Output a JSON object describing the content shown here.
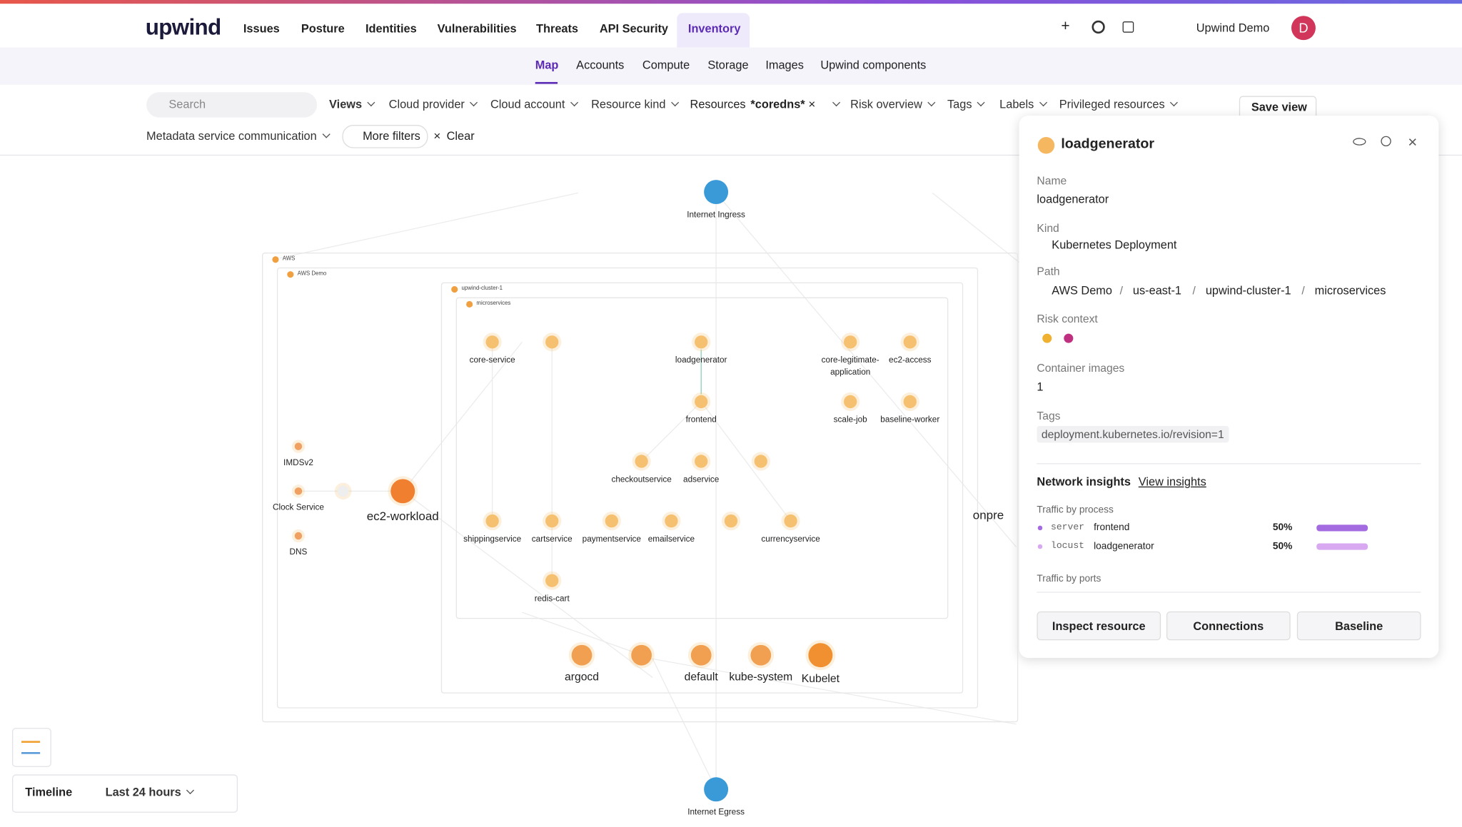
{
  "nav": {
    "logo": "upwind",
    "items": [
      "Issues",
      "Posture",
      "Identities",
      "Vulnerabilities",
      "Threats",
      "API Security",
      "Inventory"
    ],
    "account": "Upwind Demo",
    "avatar": "D"
  },
  "subnav": [
    "Map",
    "Accounts",
    "Compute",
    "Storage",
    "Images",
    "Upwind components"
  ],
  "filters": {
    "search": "Search",
    "row1": [
      "Views",
      "Cloud provider",
      "Cloud account",
      "Resource kind"
    ],
    "resources": "Resources",
    "resources_value": "*coredns*",
    "row1b": [
      "Risk overview",
      "Tags",
      "Labels",
      "Privileged resources"
    ],
    "metadata": "Metadata service communication",
    "more": "More filters",
    "clear": "Clear",
    "save": "Save view"
  },
  "map": {
    "groups": [
      "AWS",
      "AWS Demo",
      "upwind-cluster-1",
      "microservices"
    ],
    "nodes": [
      "Internet Ingress",
      "core-service",
      null,
      "loadgenerator",
      "core-legitimate-application",
      "ec2-access",
      "frontend",
      "scale-job",
      "baseline-worker",
      "checkoutservice",
      "adservice",
      null,
      "shippingservice",
      "cartservice",
      "paymentservice",
      "emailservice",
      null,
      "currencyservice",
      "redis-cart",
      "argocd",
      null,
      "default",
      "kube-system",
      "Kubelet",
      "ec2-workload",
      "IMDSv2",
      "Clock Service",
      "DNS",
      null,
      "Internet Egress",
      "onpre"
    ]
  },
  "panel": {
    "title": "loadgenerator",
    "name_label": "Name",
    "name": "loadgenerator",
    "kind_label": "Kind",
    "kind": "Kubernetes Deployment",
    "path_label": "Path",
    "path": [
      "AWS Demo",
      "us-east-1",
      "upwind-cluster-1",
      "microservices"
    ],
    "risk_label": "Risk context",
    "images_label": "Container images",
    "images": "1",
    "tags_label": "Tags",
    "tag": "deployment.kubernetes.io/revision=1",
    "tab": "Network insights",
    "tab_link": "View insights",
    "traffic_label": "Traffic by process",
    "traffic": [
      {
        "process": "server",
        "name": "frontend",
        "share": "50%"
      },
      {
        "process": "locust",
        "name": "loadgenerator",
        "share": "50%"
      }
    ],
    "ports_label": "Traffic by ports",
    "buttons": [
      "Inspect resource",
      "Connections",
      "Baseline"
    ]
  },
  "timeline": {
    "label": "Timeline",
    "range": "Last 24 hours"
  }
}
